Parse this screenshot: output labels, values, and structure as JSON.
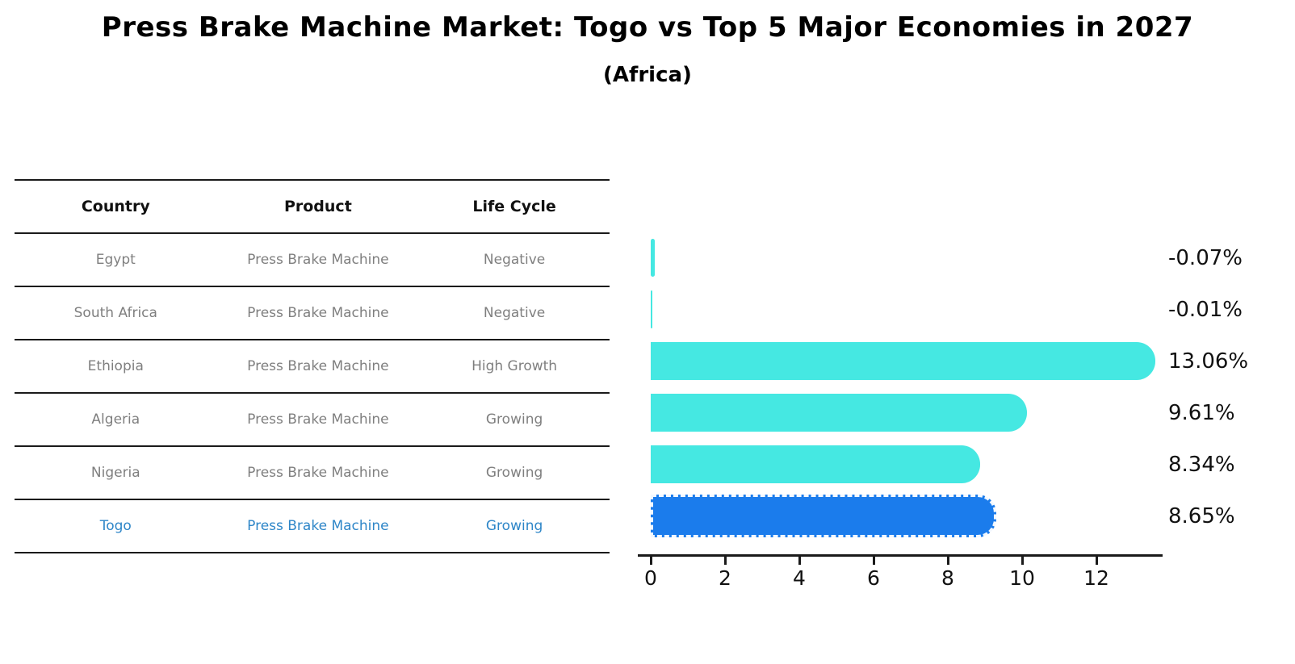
{
  "title": "Press Brake Machine Market: Togo vs Top 5 Major Economies in 2027",
  "subtitle": "(Africa)",
  "table": {
    "headers": [
      "Country",
      "Product",
      "Life Cycle"
    ],
    "rows": [
      {
        "country": "Egypt",
        "product": "Press Brake Machine",
        "life_cycle": "Negative",
        "highlight": false
      },
      {
        "country": "South Africa",
        "product": "Press Brake Machine",
        "life_cycle": "Negative",
        "highlight": false
      },
      {
        "country": "Ethiopia",
        "product": "Press Brake Machine",
        "life_cycle": "High Growth",
        "highlight": false
      },
      {
        "country": "Algeria",
        "product": "Press Brake Machine",
        "life_cycle": "Growing",
        "highlight": false
      },
      {
        "country": "Nigeria",
        "product": "Press Brake Machine",
        "life_cycle": "Growing",
        "highlight": false
      },
      {
        "country": "Togo",
        "product": "Press Brake Machine",
        "life_cycle": "Growing",
        "highlight": true
      }
    ]
  },
  "chart_data": {
    "type": "bar",
    "orientation": "horizontal",
    "title": "Press Brake Machine Market: Togo vs Top 5 Major Economies in 2027 (Africa)",
    "categories": [
      "Egypt",
      "South Africa",
      "Ethiopia",
      "Algeria",
      "Nigeria",
      "Togo"
    ],
    "values": [
      -0.07,
      -0.01,
      13.06,
      9.61,
      8.34,
      8.65
    ],
    "value_labels": [
      "-0.07%",
      "-0.01%",
      "13.06%",
      "9.61%",
      "8.34%",
      "8.65%"
    ],
    "unit": "percent CAGR",
    "xticks": [
      "0",
      "2",
      "4",
      "6",
      "8",
      "10",
      "12"
    ],
    "xtick_values": [
      0,
      2,
      4,
      6,
      8,
      10,
      12
    ],
    "xlim": [
      -0.35,
      13.8
    ],
    "grid": false,
    "legend": false,
    "bar_color": "#45e8e2",
    "highlight_color": "#1b7cec",
    "highlight_index": 5,
    "highlight_text_color": "#2e86c8"
  }
}
